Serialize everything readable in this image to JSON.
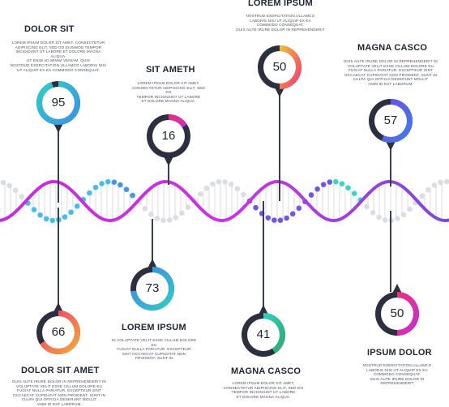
{
  "colors": {
    "dark": "#2b2f3e",
    "helix_primary": "#cc33e6",
    "helix_secondary": "#7b4bd6",
    "rung": "#e3e5ea",
    "dot_gray": "#d9dbe1",
    "line": "#3a3f4e"
  },
  "items": [
    {
      "title": "DOLOR SIT",
      "value": 95,
      "ring_colors": [
        "#2fd2c4",
        "#3a8fe8"
      ],
      "text": [
        "LOREM IPSUM DOLOR SIT AMET, CONSECTETUR",
        "ADIPISCING ELIT, SED DO EIUSMOD TEMPOR",
        "INCIDIDUNT UT LABORE ET DOLORE MAGNA ALIQUA.",
        "UT ENIM AD MINIM VENIAM, QUIS",
        "NOSTRUD EXERCITATION ULLAMCO LABORIS NISI",
        "UT ALIQUIP EX EA COMMODO CONSEQUAT."
      ]
    },
    {
      "title": "SIT AMETH",
      "value": 16,
      "ring_colors": [
        "#e8316d",
        "#c22fd9"
      ],
      "text": [
        "LOREM IPSUM DOLOR SIT AMET,",
        "CONSECTETUR ADIPISCING ELIT, SED DO",
        "TEMPOR INCIDIDUNT UT LABORE",
        "ET DOLORE MAGNA ALIQUA."
      ]
    },
    {
      "title": "LOREM IPSUM",
      "value": 50,
      "ring_colors": [
        "#f4c133",
        "#f0307a"
      ],
      "text": [
        "NOSTRUD EXERCITATION ULLAMCO",
        "LABORIS NISI UT ALIQUIP EX EA",
        "COMMODO CONSEQUAT.",
        "DUIS AUTE IRURE DOLOR IN REPREHENDERIT"
      ]
    },
    {
      "title": "MAGNA CASCO",
      "value": 57,
      "ring_colors": [
        "#6a4ee0",
        "#3f7ee8"
      ],
      "text": [
        "DUIS AUTE IRURE DOLOR IN REPREHENDERIT IN",
        "VOLUPTATE VELIT ESSE CILLUM DOLORE EU",
        "FUGIAT NULLA PARIATUR. EXCEPTEUR SINT",
        "OCCAECAT CUPIDATAT NON PROIDENT, SUNT IN",
        "CULPA QUI OFFICIA DESERUNT MOLLIT",
        "ANIM ID EST LABORUM."
      ]
    },
    {
      "title": "DOLOR SIT AMET",
      "value": 66,
      "ring_colors": [
        "#f0307a",
        "#f5b22e"
      ],
      "text": [
        "DUIS AUTE IRURE DOLOR IN REPREHENDERIT IN",
        "VOLUPTATE VELIT ESSE CILLUM DOLORE EU",
        "FUGIAT NULLA PARIATUR. EXCEPTEUR SINT",
        "OCCAECAT CUPIDATAT NON PROIDENT, SUNT IN",
        "CULPA QUI OFFICIA DESERUNT MOLLIT",
        "ANIM ID EST LABORUM."
      ]
    },
    {
      "title": "LOREM IPSUM",
      "value": 73,
      "ring_colors": [
        "#3f7ee8",
        "#2fd2c4"
      ],
      "text": [
        "IN VOLUPTATE VELIT ESSE CILLUM DOLORE EU",
        "FUGIAT NULLA PARIATUR. EXCEPTEUR",
        "SINT OCCAECAT CUPIDATAT NON",
        "PROIDENT, SUNT IN"
      ]
    },
    {
      "title": "MAGNA CASCO",
      "value": 41,
      "ring_colors": [
        "#2fd2c4",
        "#2ea86a"
      ],
      "text": [
        "LOREM IPSUM DOLOR SIT AMET,",
        "CONSECTETUR ADIPISCING ELIT, SED DO",
        "TEMPOR INCIDIDUNT UT LABORE",
        "ET DOLORE MAGNA ALIQUA."
      ]
    },
    {
      "title": "IPSUM DOLOR",
      "value": 50,
      "ring_colors": [
        "#f0307a",
        "#c22fd9"
      ],
      "text": [
        "NOSTRUD EXERCITATION ULLAMCO",
        "LABORIS NISI UT ALIQUIP EX EA",
        "COMMODO CONSEQUAT.",
        "DUIS AUTE IRURE DOLOR IN REPREHENDERIT"
      ]
    }
  ]
}
